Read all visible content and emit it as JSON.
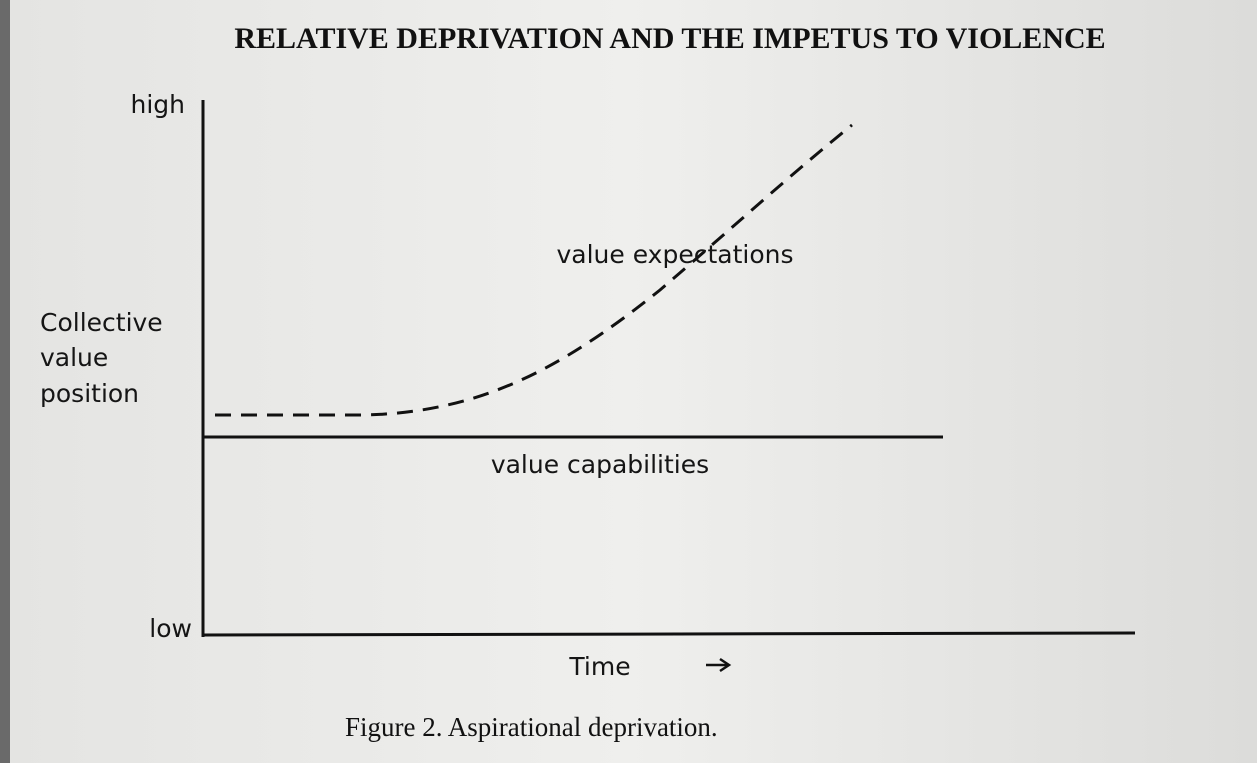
{
  "header": {
    "title": "RELATIVE DEPRIVATION AND THE IMPETUS TO VIOLENCE"
  },
  "figure": {
    "y_axis": {
      "high": "high",
      "low": "low",
      "label": [
        "Collective",
        "value",
        "position"
      ]
    },
    "x_axis": {
      "label": "Time"
    },
    "curves": [
      {
        "label": "value expectations"
      },
      {
        "label": "value capabilities"
      }
    ],
    "caption": "Figure 2. Aspirational deprivation."
  }
}
